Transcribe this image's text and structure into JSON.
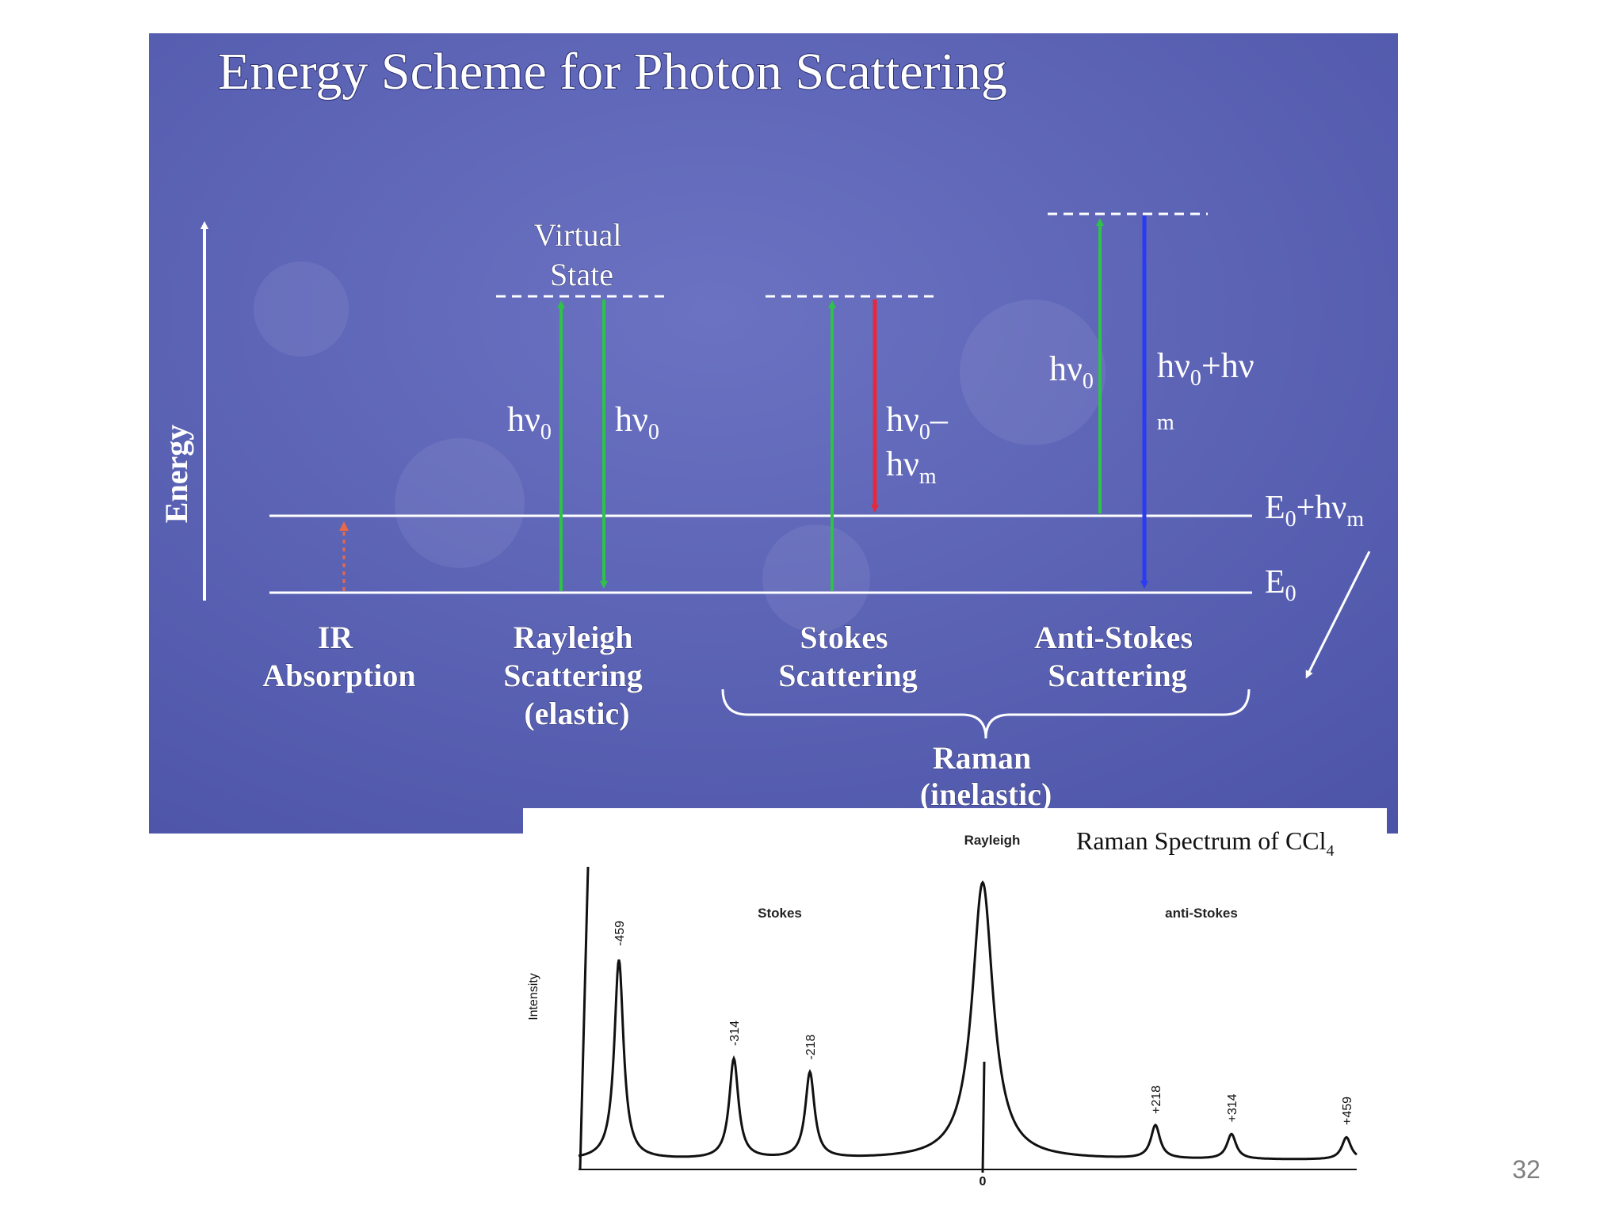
{
  "slide": {
    "title": "Energy Scheme for Photon Scattering",
    "page_number": "32"
  },
  "scheme": {
    "axis_label": "Energy",
    "virtual_state_label": [
      "Virtual",
      "State"
    ],
    "levels": {
      "ground": {
        "base": "E",
        "sub": "0",
        "suffix": "",
        "suffix_sub": ""
      },
      "excited": {
        "base": "E",
        "sub": "0",
        "suffix": "+hν",
        "suffix_sub": "m"
      }
    },
    "transitions": {
      "rayleigh_up": {
        "base": "hν",
        "sub": "0"
      },
      "rayleigh_down": {
        "base": "hν",
        "sub": "0"
      },
      "stokes_down_line1": {
        "base": "hν",
        "sub": "0",
        "suffix": "–"
      },
      "stokes_down_line2": {
        "base": "hν",
        "sub": "m"
      },
      "antistokes_up": {
        "base": "hν",
        "sub": "0"
      },
      "antistokes_down_line1": {
        "base": "hν",
        "sub": "0",
        "suffix": "+hν"
      },
      "antistokes_down_line2": "m"
    },
    "processes": {
      "ir": [
        "IR",
        "Absorption"
      ],
      "rayleigh": [
        "Rayleigh",
        "Scattering",
        "(elastic)"
      ],
      "stokes": [
        "Stokes",
        "Scattering"
      ],
      "antistokes": [
        "Anti-Stokes",
        "Scattering"
      ]
    },
    "raman_group": [
      "Raman",
      "(inelastic)"
    ],
    "colors": {
      "background": "#5a62b4",
      "ir_arrow": "#e8684a",
      "green_arrow": "#2ec24a",
      "red_arrow": "#e8283a",
      "blue_arrow": "#2a3cf0",
      "lines": "#ffffff"
    }
  },
  "spectrum": {
    "title": "Raman Spectrum of CCl",
    "title_sub": "4",
    "ylabel": "Intensity",
    "zero_label": "0",
    "region_labels": {
      "stokes": "Stokes",
      "rayleigh": "Rayleigh",
      "antistokes": "anti-Stokes"
    },
    "peaks": [
      {
        "label": "-459",
        "shift": -459,
        "height": 0.72
      },
      {
        "label": "-314",
        "shift": -314,
        "height": 0.36
      },
      {
        "label": "-218",
        "shift": -218,
        "height": 0.31
      },
      {
        "label": "+218",
        "shift": 218,
        "height": 0.12
      },
      {
        "label": "+314",
        "shift": 314,
        "height": 0.09
      },
      {
        "label": "+459",
        "shift": 459,
        "height": 0.08
      }
    ],
    "rayleigh_peak": {
      "shift": 0,
      "height": 1.0
    }
  }
}
